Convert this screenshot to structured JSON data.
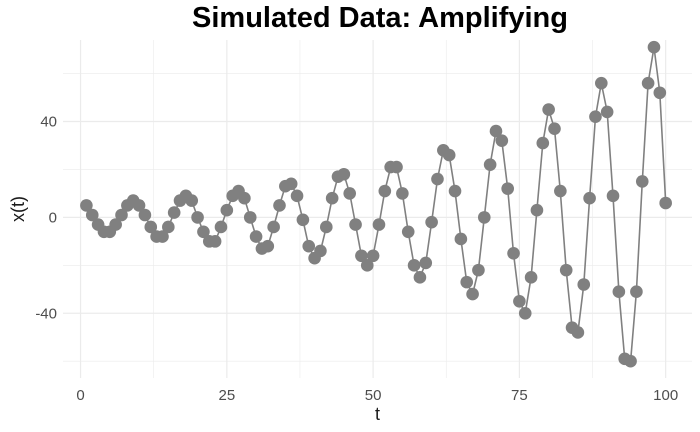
{
  "chart_data": {
    "type": "line",
    "title": "Simulated Data: Amplifying",
    "xlabel": "t",
    "ylabel": "x(t)",
    "xlim": [
      -3,
      104.5
    ],
    "ylim": [
      -67,
      74
    ],
    "xticks": [
      0,
      25,
      50,
      75,
      100
    ],
    "yticks": [
      -40,
      0,
      40
    ],
    "grid": true,
    "colors": {
      "series": "#808080",
      "grid": "#ebebeb"
    },
    "series": [
      {
        "x": [
          1,
          2,
          3,
          4,
          5,
          6,
          7,
          8,
          9,
          10,
          11,
          12,
          13,
          14,
          15,
          16,
          17,
          18,
          19,
          20,
          21,
          22,
          23,
          24,
          25,
          26,
          27,
          28,
          29,
          30,
          31,
          32,
          33,
          34,
          35,
          36,
          37,
          38,
          39,
          40,
          41,
          42,
          43,
          44,
          45,
          46,
          47,
          48,
          49,
          50,
          51,
          52,
          53,
          54,
          55,
          56,
          57,
          58,
          59,
          60,
          61,
          62,
          63,
          64,
          65,
          66,
          67,
          68,
          69,
          70,
          71,
          72,
          73,
          74,
          75,
          76,
          77,
          78,
          79,
          80,
          81,
          82,
          83,
          84,
          85,
          86,
          87,
          88,
          89,
          90,
          91,
          92,
          93,
          94,
          95,
          96,
          97,
          98,
          99,
          100
        ],
        "y": [
          5,
          1,
          -3,
          -6,
          -6,
          -3,
          1,
          5,
          7,
          5,
          1,
          -4,
          -8,
          -8,
          -4,
          2,
          7,
          9,
          7,
          0,
          -6,
          -10,
          -10,
          -4,
          3,
          9,
          11,
          8,
          0,
          -8,
          -13,
          -12,
          -4,
          5,
          13,
          14,
          9,
          -1,
          -12,
          -17,
          -14,
          -4,
          8,
          17,
          18,
          10,
          -3,
          -16,
          -20,
          -16,
          -3,
          11,
          21,
          21,
          10,
          -6,
          -20,
          -25,
          -19,
          -2,
          16,
          28,
          26,
          11,
          -9,
          -27,
          -32,
          -22,
          0,
          22,
          36,
          32,
          12,
          -15,
          -35,
          -40,
          -25,
          3,
          31,
          45,
          37,
          11,
          -22,
          -46,
          -48,
          -28,
          8,
          42,
          56,
          44,
          9,
          -31,
          -59,
          -60,
          -31,
          15,
          56,
          71,
          52,
          6
        ]
      }
    ]
  }
}
